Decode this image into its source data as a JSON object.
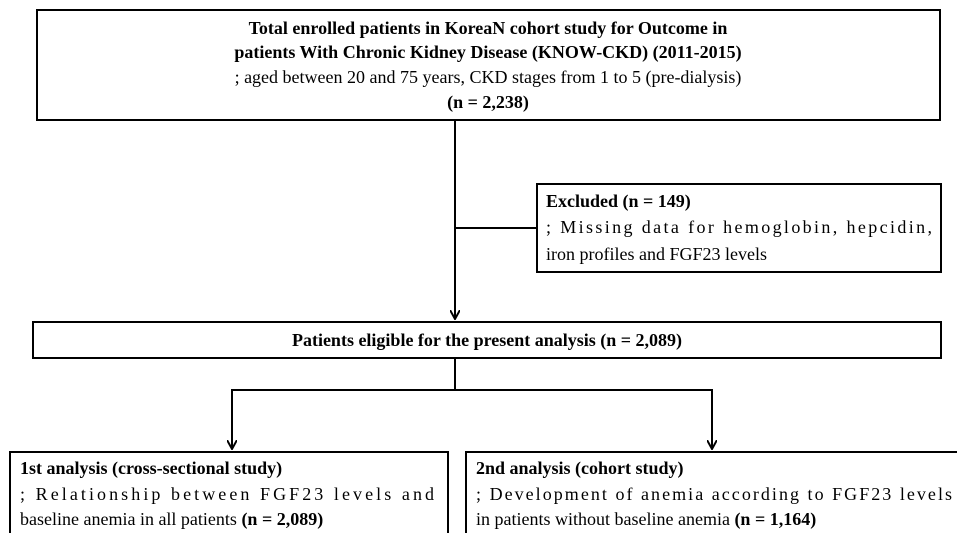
{
  "nodes": [
    {
      "title_lines": [
        "Total enrolled patients in  KoreaN cohort study for Outcome in",
        "patients With Chronic Kidney Disease (KNOW-CKD)  (2011-2015)"
      ],
      "lines": [
        "; aged between 20 and 75 years, CKD stages from 1 to 5 (pre-dialysis)"
      ],
      "count": "(n = 2,238)"
    },
    {
      "title": "Excluded (n = 149)",
      "lines": [
        "; Missing data for hemoglobin, hepcidin,",
        "iron profiles and FGF23 levels"
      ]
    },
    {
      "title": "Patients eligible for the present analysis (n = 2,089)"
    },
    {
      "title": "1st analysis (cross-sectional study)",
      "lines": [
        "; Relationship between FGF23 levels and",
        "baseline anemia in all patients"
      ],
      "count": "(n = 2,089)"
    },
    {
      "title": "2nd analysis (cohort study)",
      "lines": [
        "; Development of anemia according to FGF23 levels",
        "in patients without baseline anemia"
      ],
      "count": "(n = 1,164)"
    }
  ]
}
